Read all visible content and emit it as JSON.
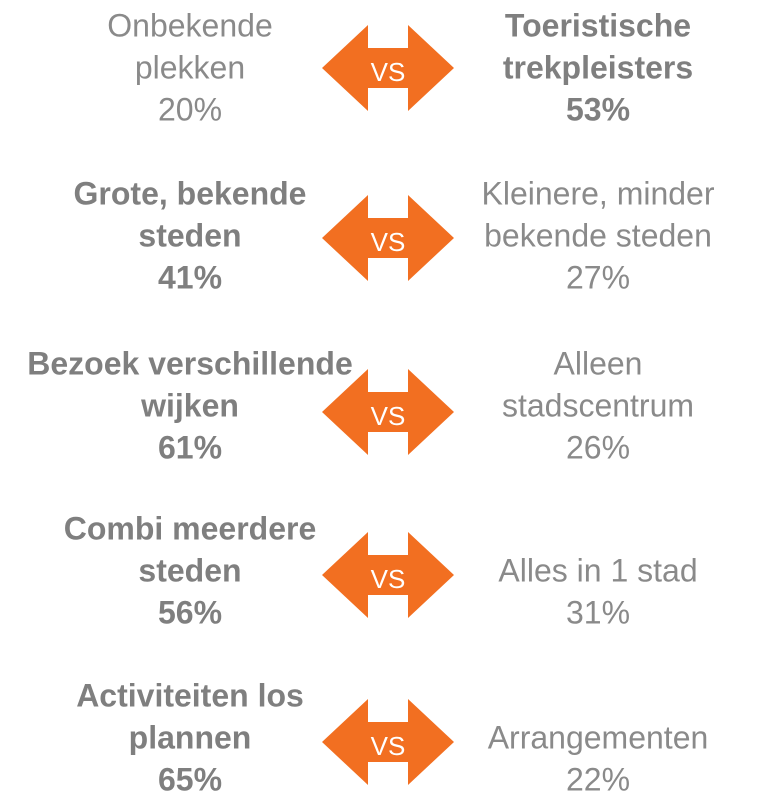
{
  "vs_label": "VS",
  "rows": [
    {
      "left": {
        "lines": [
          "Onbekende",
          "plekken"
        ],
        "pct": "20%",
        "bold": false
      },
      "right": {
        "lines": [
          "Toeristische",
          "trekpleisters"
        ],
        "pct": "53%",
        "bold": true
      }
    },
    {
      "left": {
        "lines": [
          "Grote, bekende",
          "steden"
        ],
        "pct": "41%",
        "bold": true
      },
      "right": {
        "lines": [
          "Kleinere, minder",
          "bekende steden"
        ],
        "pct": "27%",
        "bold": false
      }
    },
    {
      "left": {
        "lines": [
          "Bezoek verschillende",
          "wijken"
        ],
        "pct": "61%",
        "bold": true
      },
      "right": {
        "lines": [
          "Alleen",
          "stadscentrum"
        ],
        "pct": "26%",
        "bold": false
      }
    },
    {
      "left": {
        "lines": [
          "Combi meerdere",
          "steden"
        ],
        "pct": "56%",
        "bold": true
      },
      "right": {
        "lines": [
          "Alles in 1 stad"
        ],
        "pct": "31%",
        "bold": false
      }
    },
    {
      "left": {
        "lines": [
          "Activiteiten los",
          "plannen"
        ],
        "pct": "65%",
        "bold": true
      },
      "right": {
        "lines": [
          "Arrangementen"
        ],
        "pct": "22%",
        "bold": false
      }
    }
  ]
}
